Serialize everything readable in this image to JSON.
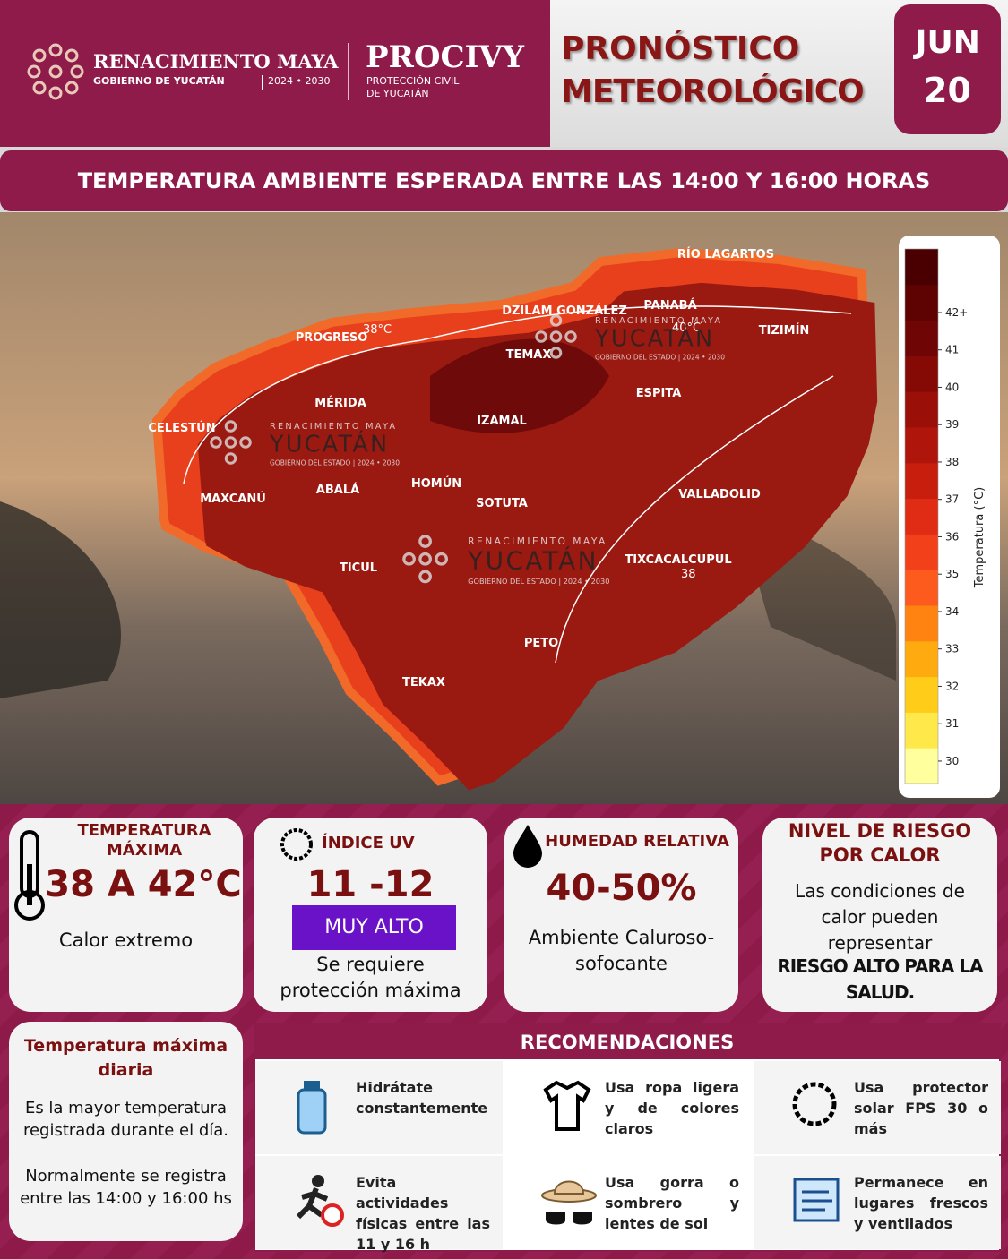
{
  "header": {
    "brand_name": "RENACIMIENTO MAYA",
    "brand_sub": "GOBIERNO DE YUCATÁN",
    "brand_years": "2024 • 2030",
    "agency": "PROCIVY",
    "agency_sub1": "PROTECCIÓN CIVIL",
    "agency_sub2": "DE YUCATÁN",
    "title_line1": "PRONÓSTICO",
    "title_line2": "METEOROLÓGICO",
    "month": "JUN",
    "day": "20"
  },
  "banner": "TEMPERATURA AMBIENTE ESPERADA ENTRE LAS 14:00 Y 16:00 HORAS",
  "map": {
    "cities": [
      "RÍO LAGARTOS",
      "PANABÁ",
      "DZILAM GONZÁLEZ",
      "TIZIMÍN",
      "PROGRESO",
      "TEMAX",
      "MÉRIDA",
      "ESPITA",
      "CELESTÚN",
      "IZAMAL",
      "HOMÚN",
      "ABALÁ",
      "MAXCANÚ",
      "SOTUTA",
      "VALLADOLID",
      "TICUL",
      "TIXCACALCUPUL",
      "PETO",
      "TEKAX"
    ],
    "isotherms": [
      "38°C",
      "40°C",
      "38"
    ],
    "watermark": {
      "top": "RENACIMIENTO MAYA",
      "name": "YUCATÁN",
      "bottom": "GOBIERNO DEL ESTADO | 2024 • 2030"
    }
  },
  "colorbar": {
    "title": "Temperatura (°C)",
    "lim": [
      29.4,
      43.7
    ],
    "ticks": [
      30,
      31,
      32,
      33,
      34,
      35,
      36,
      37,
      38,
      39,
      40,
      41,
      {
        "value": 42,
        "label": "42+"
      }
    ]
  },
  "cards": [
    {
      "title": "TEMPERATURA MÁXIMA",
      "value": "38 A 42°C",
      "text": "Calor extremo"
    },
    {
      "title": "ÍNDICE UV",
      "value": "11 -12",
      "badge": "MUY ALTO",
      "text": "Se requiere protección máxima"
    },
    {
      "title": "HUMEDAD RELATIVA",
      "value": "40-50%",
      "text": "Ambiente Caluroso-sofocante"
    },
    {
      "title": "NIVEL DE RIESGO POR CALOR",
      "text": "Las condiciones de calor pueden representar",
      "emphasis": "RIESGO ALTO PARA LA SALUD."
    }
  ],
  "definition": {
    "title": "Temperatura máxima diaria",
    "text1": "Es la mayor temperatura registrada durante el día.",
    "text2": "Normalmente se registra entre las 14:00 y 16:00 hs"
  },
  "recommendations": {
    "title": "RECOMENDACIONES",
    "items": [
      "Hidrátate constantemente",
      "Usa ropa ligera y de colores claros",
      "Usa protector solar FPS 30 o más",
      "Evita actividades físicas entre las 11 y 16 h",
      "Usa gorra o sombrero y lentes de sol",
      "Permanece en lugares frescos y ventilados"
    ]
  }
}
